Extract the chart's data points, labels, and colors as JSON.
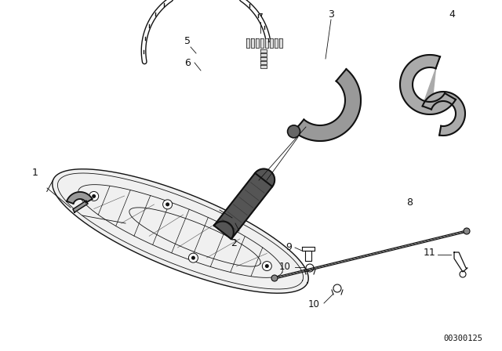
{
  "bg_color": "#ffffff",
  "line_color": "#111111",
  "text_color": "#111111",
  "catalog_number": "00300125",
  "figsize": [
    6.4,
    4.48
  ],
  "dpi": 100
}
